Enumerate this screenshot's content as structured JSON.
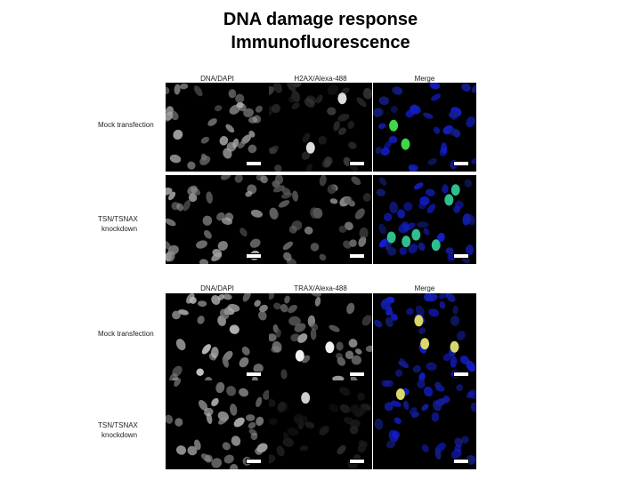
{
  "title": {
    "line1": "DNA damage response",
    "line2": "Immunofluorescence"
  },
  "figures": [
    {
      "columns": [
        "DNA/DAPI",
        "H2AX/Alexa-488",
        "Merge"
      ],
      "rows": [
        {
          "label_lines": [
            "Mock transfection"
          ]
        },
        {
          "label_lines": [
            "TSN/TSNAX",
            "knockdown"
          ]
        }
      ]
    },
    {
      "columns": [
        "DNA/DAPI",
        "TRAX/Alexa-488",
        "Merge"
      ],
      "rows": [
        {
          "label_lines": [
            "Mock transfection"
          ]
        },
        {
          "label_lines": [
            "TSN/TSNAX",
            "knockdown"
          ]
        }
      ]
    }
  ]
}
